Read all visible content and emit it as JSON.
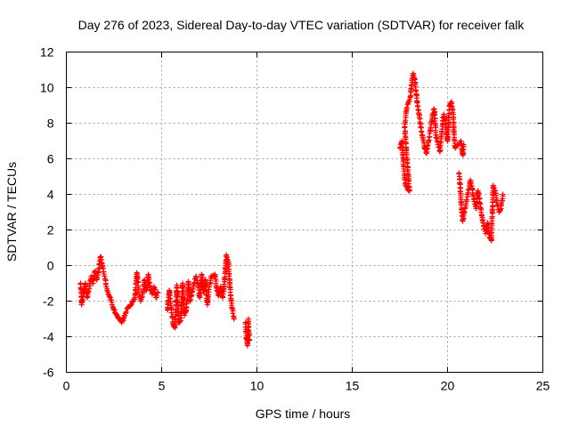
{
  "chart_data": {
    "type": "scatter",
    "title": "Day 276 of 2023, Sidereal Day-to-day VTEC variation (SDTVAR) for receiver falk",
    "xlabel": "GPS time / hours",
    "ylabel": "SDTVAR / TECUs",
    "xlim": [
      0,
      25
    ],
    "ylim": [
      -6,
      12
    ],
    "xticks": [
      0,
      5,
      10,
      15,
      20,
      25
    ],
    "yticks": [
      -6,
      -4,
      -2,
      0,
      2,
      4,
      6,
      8,
      10,
      12
    ],
    "grid": true,
    "marker": "+",
    "color": "#ff0000",
    "series": [
      {
        "name": "SDTVAR",
        "segments": [
          [
            [
              0.75,
              -1.0
            ],
            [
              0.8,
              -2.2
            ],
            [
              0.9,
              -1.6
            ],
            [
              1.0,
              -1.0
            ],
            [
              1.1,
              -1.8
            ],
            [
              1.2,
              -1.2
            ],
            [
              1.3,
              -0.6
            ],
            [
              1.4,
              -1.0
            ],
            [
              1.5,
              -0.3
            ],
            [
              1.6,
              -0.8
            ],
            [
              1.7,
              -0.2
            ],
            [
              1.8,
              0.5
            ],
            [
              1.9,
              0.0
            ],
            [
              2.0,
              -0.6
            ],
            [
              2.1,
              -1.2
            ],
            [
              2.2,
              -1.6
            ],
            [
              2.3,
              -1.8
            ],
            [
              2.4,
              -2.2
            ],
            [
              2.5,
              -2.5
            ],
            [
              2.6,
              -2.7
            ],
            [
              2.7,
              -2.9
            ],
            [
              2.8,
              -3.0
            ],
            [
              2.9,
              -3.2
            ],
            [
              3.0,
              -3.0
            ],
            [
              3.1,
              -2.7
            ],
            [
              3.2,
              -2.4
            ],
            [
              3.3,
              -2.3
            ],
            [
              3.4,
              -2.2
            ],
            [
              3.5,
              -2.0
            ],
            [
              3.6,
              -1.8
            ],
            [
              3.7,
              -0.4
            ],
            [
              3.8,
              -1.5
            ],
            [
              3.9,
              -2.0
            ],
            [
              4.0,
              -1.6
            ],
            [
              4.1,
              -0.8
            ],
            [
              4.2,
              -1.4
            ],
            [
              4.3,
              -0.5
            ],
            [
              4.4,
              -1.2
            ],
            [
              4.5,
              -1.6
            ],
            [
              4.6,
              -1.2
            ],
            [
              4.7,
              -1.8
            ],
            [
              4.8,
              -1.5
            ]
          ],
          [
            [
              5.3,
              -2.5
            ],
            [
              5.4,
              -1.4
            ],
            [
              5.6,
              -3.3
            ],
            [
              5.7,
              -3.5
            ],
            [
              5.8,
              -1.1
            ],
            [
              5.9,
              -3.2
            ],
            [
              6.0,
              -3.1
            ],
            [
              6.1,
              -1.0
            ],
            [
              6.2,
              -2.8
            ],
            [
              6.3,
              -2.5
            ],
            [
              6.4,
              -0.9
            ],
            [
              6.5,
              -2.0
            ],
            [
              6.6,
              -1.5
            ],
            [
              6.7,
              -1.0
            ],
            [
              6.8,
              -0.6
            ],
            [
              6.9,
              -1.0
            ],
            [
              7.0,
              -1.8
            ],
            [
              7.1,
              -0.5
            ],
            [
              7.2,
              -1.5
            ],
            [
              7.3,
              -0.8
            ],
            [
              7.4,
              -2.2
            ],
            [
              7.5,
              -1.2
            ],
            [
              7.6,
              -0.6
            ],
            [
              7.8,
              -0.5
            ],
            [
              7.9,
              -1.4
            ],
            [
              8.0,
              -1.7
            ],
            [
              8.1,
              -1.2
            ],
            [
              8.2,
              -1.8
            ],
            [
              8.3,
              -0.9
            ],
            [
              8.4,
              0.6
            ],
            [
              8.5,
              0.2
            ],
            [
              8.6,
              -1.5
            ],
            [
              8.7,
              -2.4
            ],
            [
              8.8,
              -3.0
            ]
          ],
          [
            [
              9.4,
              -3.2
            ],
            [
              9.45,
              -4.1
            ],
            [
              9.5,
              -4.5
            ],
            [
              9.55,
              -3.0
            ],
            [
              9.6,
              -4.2
            ]
          ],
          [
            [
              17.5,
              6.6
            ],
            [
              17.6,
              7.0
            ],
            [
              17.7,
              5.6
            ],
            [
              17.8,
              4.5
            ],
            [
              17.9,
              4.3
            ],
            [
              18.0,
              4.2
            ],
            [
              17.75,
              7.8
            ],
            [
              17.85,
              8.8
            ],
            [
              17.95,
              9.2
            ],
            [
              18.05,
              9.5
            ],
            [
              18.15,
              10.5
            ],
            [
              18.2,
              10.8
            ],
            [
              18.3,
              10.3
            ],
            [
              18.4,
              9.2
            ],
            [
              18.5,
              8.5
            ],
            [
              18.6,
              7.8
            ],
            [
              18.7,
              7.2
            ],
            [
              18.8,
              6.6
            ],
            [
              18.9,
              6.3
            ],
            [
              19.0,
              7.0
            ],
            [
              19.1,
              7.6
            ],
            [
              19.2,
              8.4
            ],
            [
              19.3,
              8.8
            ],
            [
              19.4,
              7.2
            ],
            [
              19.5,
              6.8
            ],
            [
              19.6,
              6.4
            ],
            [
              19.7,
              7.5
            ],
            [
              19.8,
              8.5
            ],
            [
              19.9,
              8.0
            ],
            [
              20.0,
              7.0
            ],
            [
              20.1,
              9.0
            ],
            [
              20.2,
              9.2
            ],
            [
              20.3,
              8.5
            ],
            [
              20.35,
              7.2
            ],
            [
              20.4,
              6.6
            ],
            [
              20.7,
              7.0
            ],
            [
              20.75,
              6.5
            ],
            [
              20.8,
              6.2
            ],
            [
              20.85,
              6.8
            ]
          ],
          [
            [
              20.6,
              5.2
            ],
            [
              20.65,
              4.6
            ],
            [
              20.7,
              3.8
            ],
            [
              20.75,
              3.0
            ],
            [
              20.8,
              2.5
            ],
            [
              21.2,
              4.8
            ],
            [
              21.3,
              4.3
            ],
            [
              21.4,
              3.6
            ],
            [
              21.5,
              3.2
            ],
            [
              21.6,
              4.2
            ],
            [
              21.7,
              3.5
            ],
            [
              21.8,
              2.8
            ],
            [
              21.9,
              2.2
            ],
            [
              22.0,
              1.8
            ],
            [
              22.1,
              2.4
            ],
            [
              22.2,
              1.6
            ],
            [
              22.3,
              1.4
            ],
            [
              22.35,
              3.0
            ],
            [
              22.4,
              4.5
            ],
            [
              22.5,
              4.2
            ],
            [
              22.6,
              3.4
            ],
            [
              22.7,
              3.0
            ],
            [
              22.8,
              3.2
            ],
            [
              22.9,
              4.0
            ]
          ]
        ]
      }
    ]
  }
}
